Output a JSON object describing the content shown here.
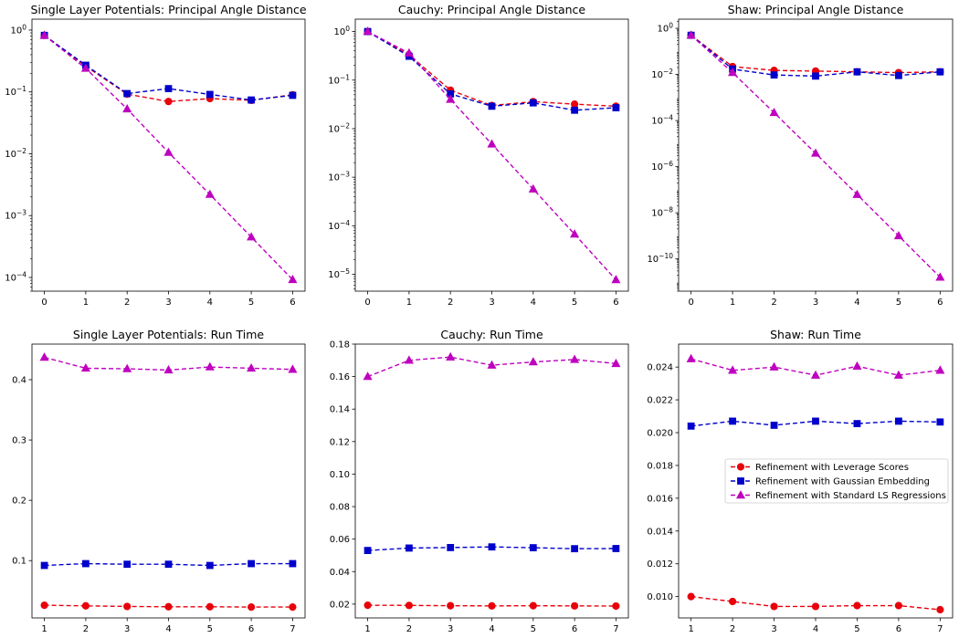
{
  "colors": {
    "leverage": "#e8000b",
    "gaussian": "#0000cc",
    "standard": "#bf00bf"
  },
  "legend": {
    "placement": "center-right",
    "entries": [
      {
        "label": "Refinement with Leverage Scores",
        "series": "leverage",
        "marker": "circle"
      },
      {
        "label": "Refinement with Gaussian Embedding",
        "series": "gaussian",
        "marker": "square"
      },
      {
        "label": "Refinement with Standard LS Regressions",
        "series": "standard",
        "marker": "triangle"
      }
    ]
  },
  "chart_data": [
    {
      "type": "line",
      "title": "Single Layer Potentials: Principal Angle Distance",
      "yscale": "log",
      "x": [
        0,
        1,
        2,
        3,
        4,
        5,
        6
      ],
      "xticks": [
        "0",
        "1",
        "2",
        "3",
        "4",
        "5",
        "6"
      ],
      "yticks": [
        {
          "value": 1,
          "label": "10^0",
          "base": "10",
          "exp": "0"
        },
        {
          "value": 0.1,
          "label": "10^-1",
          "base": "10",
          "exp": "−1"
        },
        {
          "value": 0.01,
          "label": "10^-2",
          "base": "10",
          "exp": "−2"
        },
        {
          "value": 0.001,
          "label": "10^-3",
          "base": "10",
          "exp": "−3"
        },
        {
          "value": 0.0001,
          "label": "10^-4",
          "base": "10",
          "exp": "−4"
        }
      ],
      "ylim": [
        6e-05,
        1.5
      ],
      "series": [
        {
          "name": "Refinement with Leverage Scores",
          "key": "leverage",
          "values": [
            0.82,
            0.26,
            0.092,
            0.07,
            0.078,
            0.073,
            0.09
          ]
        },
        {
          "name": "Refinement with Gaussian Embedding",
          "key": "gaussian",
          "values": [
            0.82,
            0.27,
            0.094,
            0.113,
            0.091,
            0.074,
            0.088
          ]
        },
        {
          "name": "Refinement with Standard LS Regressions",
          "key": "standard",
          "values": [
            0.82,
            0.24,
            0.053,
            0.0105,
            0.0022,
            0.00045,
            9.2e-05
          ]
        }
      ]
    },
    {
      "type": "line",
      "title": "Cauchy: Principal Angle Distance",
      "yscale": "log",
      "x": [
        0,
        1,
        2,
        3,
        4,
        5,
        6
      ],
      "xticks": [
        "0",
        "1",
        "2",
        "3",
        "4",
        "5",
        "6"
      ],
      "yticks": [
        {
          "value": 1,
          "label": "10^0",
          "base": "10",
          "exp": "0"
        },
        {
          "value": 0.1,
          "label": "10^-1",
          "base": "10",
          "exp": "−1"
        },
        {
          "value": 0.01,
          "label": "10^-2",
          "base": "10",
          "exp": "−2"
        },
        {
          "value": 0.001,
          "label": "10^-3",
          "base": "10",
          "exp": "−3"
        },
        {
          "value": 0.0001,
          "label": "10^-4",
          "base": "10",
          "exp": "−4"
        },
        {
          "value": 1e-05,
          "label": "10^-5",
          "base": "10",
          "exp": "−5"
        }
      ],
      "ylim": [
        4.5e-06,
        1.8
      ],
      "series": [
        {
          "name": "Refinement with Leverage Scores",
          "key": "leverage",
          "values": [
            1.0,
            0.33,
            0.062,
            0.03,
            0.036,
            0.032,
            0.029
          ]
        },
        {
          "name": "Refinement with Gaussian Embedding",
          "key": "gaussian",
          "values": [
            1.0,
            0.31,
            0.052,
            0.029,
            0.034,
            0.024,
            0.027
          ]
        },
        {
          "name": "Refinement with Standard LS Regressions",
          "key": "standard",
          "values": [
            1.0,
            0.36,
            0.04,
            0.0048,
            0.00057,
            6.7e-05,
            7.7e-06
          ]
        }
      ]
    },
    {
      "type": "line",
      "title": "Shaw: Principal Angle Distance",
      "yscale": "log",
      "x": [
        0,
        1,
        2,
        3,
        4,
        5,
        6
      ],
      "xticks": [
        "0",
        "1",
        "2",
        "3",
        "4",
        "5",
        "6"
      ],
      "yticks": [
        {
          "value": 1,
          "label": "10^0",
          "base": "10",
          "exp": "0"
        },
        {
          "value": 0.01,
          "label": "10^-2",
          "base": "10",
          "exp": "−2"
        },
        {
          "value": 0.0001,
          "label": "10^-4",
          "base": "10",
          "exp": "−4"
        },
        {
          "value": 1e-06,
          "label": "10^-6",
          "base": "10",
          "exp": "−6"
        },
        {
          "value": 1e-08,
          "label": "10^-8",
          "base": "10",
          "exp": "−8"
        },
        {
          "value": 1e-10,
          "label": "10^-10",
          "base": "10",
          "exp": "−10"
        }
      ],
      "ylim": [
        4e-12,
        2.5
      ],
      "series": [
        {
          "name": "Refinement with Leverage Scores",
          "key": "leverage",
          "values": [
            0.5,
            0.022,
            0.015,
            0.014,
            0.013,
            0.012,
            0.013
          ]
        },
        {
          "name": "Refinement with Gaussian Embedding",
          "key": "gaussian",
          "values": [
            0.5,
            0.017,
            0.0095,
            0.0085,
            0.013,
            0.009,
            0.013
          ]
        },
        {
          "name": "Refinement with Standard LS Regressions",
          "key": "standard",
          "values": [
            0.5,
            0.012,
            0.00022,
            3.8e-06,
            6.2e-08,
            1e-09,
            1.6e-11
          ]
        }
      ]
    },
    {
      "type": "line",
      "title": "Single Layer Potentials: Run Time",
      "yscale": "linear",
      "x": [
        1,
        2,
        3,
        4,
        5,
        6,
        7
      ],
      "xticks": [
        "1",
        "2",
        "3",
        "4",
        "5",
        "6",
        "7"
      ],
      "yticks": [
        {
          "value": 0.1,
          "label": "0.1"
        },
        {
          "value": 0.2,
          "label": "0.2"
        },
        {
          "value": 0.3,
          "label": "0.3"
        },
        {
          "value": 0.4,
          "label": "0.4"
        }
      ],
      "ylim": [
        0.005,
        0.459
      ],
      "series": [
        {
          "name": "Refinement with Leverage Scores",
          "key": "leverage",
          "values": [
            0.026,
            0.025,
            0.024,
            0.0235,
            0.0235,
            0.023,
            0.023
          ]
        },
        {
          "name": "Refinement with Gaussian Embedding",
          "key": "gaussian",
          "values": [
            0.092,
            0.095,
            0.094,
            0.094,
            0.092,
            0.095,
            0.095
          ]
        },
        {
          "name": "Refinement with Standard LS Regressions",
          "key": "standard",
          "values": [
            0.437,
            0.419,
            0.418,
            0.416,
            0.421,
            0.419,
            0.417
          ]
        }
      ]
    },
    {
      "type": "line",
      "title": "Cauchy: Run Time",
      "yscale": "linear",
      "x": [
        1,
        2,
        3,
        4,
        5,
        6,
        7
      ],
      "xticks": [
        "1",
        "2",
        "3",
        "4",
        "5",
        "6",
        "7"
      ],
      "yticks": [
        {
          "value": 0.02,
          "label": "0.02"
        },
        {
          "value": 0.04,
          "label": "0.04"
        },
        {
          "value": 0.06,
          "label": "0.06"
        },
        {
          "value": 0.08,
          "label": "0.08"
        },
        {
          "value": 0.1,
          "label": "0.10"
        },
        {
          "value": 0.12,
          "label": "0.12"
        },
        {
          "value": 0.14,
          "label": "0.14"
        },
        {
          "value": 0.16,
          "label": "0.16"
        },
        {
          "value": 0.18,
          "label": "0.18"
        }
      ],
      "ylim": [
        0.0115,
        0.18
      ],
      "series": [
        {
          "name": "Refinement with Leverage Scores",
          "key": "leverage",
          "values": [
            0.0193,
            0.0192,
            0.019,
            0.0189,
            0.019,
            0.0189,
            0.0188
          ]
        },
        {
          "name": "Refinement with Gaussian Embedding",
          "key": "gaussian",
          "values": [
            0.053,
            0.0545,
            0.0548,
            0.0552,
            0.0547,
            0.0541,
            0.0542
          ]
        },
        {
          "name": "Refinement with Standard LS Regressions",
          "key": "standard",
          "values": [
            0.16,
            0.17,
            0.172,
            0.167,
            0.169,
            0.1705,
            0.168
          ]
        }
      ]
    },
    {
      "type": "line",
      "title": "Shaw: Run Time",
      "yscale": "linear",
      "x": [
        1,
        2,
        3,
        4,
        5,
        6,
        7
      ],
      "xticks": [
        "1",
        "2",
        "3",
        "4",
        "5",
        "6",
        "7"
      ],
      "yticks": [
        {
          "value": 0.01,
          "label": "0.010"
        },
        {
          "value": 0.012,
          "label": "0.012"
        },
        {
          "value": 0.014,
          "label": "0.014"
        },
        {
          "value": 0.016,
          "label": "0.016"
        },
        {
          "value": 0.018,
          "label": "0.018"
        },
        {
          "value": 0.02,
          "label": "0.020"
        },
        {
          "value": 0.022,
          "label": "0.022"
        },
        {
          "value": 0.024,
          "label": "0.024"
        }
      ],
      "ylim": [
        0.0087,
        0.0254
      ],
      "series": [
        {
          "name": "Refinement with Leverage Scores",
          "key": "leverage",
          "values": [
            0.01,
            0.0097,
            0.0094,
            0.0094,
            0.00945,
            0.00945,
            0.0092
          ]
        },
        {
          "name": "Refinement with Gaussian Embedding",
          "key": "gaussian",
          "values": [
            0.0204,
            0.0207,
            0.02045,
            0.0207,
            0.02055,
            0.0207,
            0.02065
          ]
        },
        {
          "name": "Refinement with Standard LS Regressions",
          "key": "standard",
          "values": [
            0.0245,
            0.0238,
            0.024,
            0.0235,
            0.02405,
            0.0235,
            0.0238
          ]
        }
      ]
    }
  ]
}
